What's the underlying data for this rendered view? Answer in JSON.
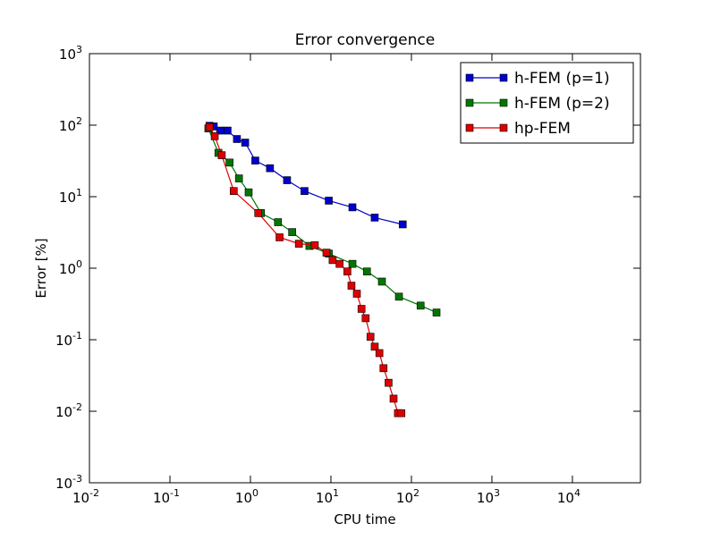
{
  "chart_data": {
    "type": "line",
    "title": "Error convergence",
    "xlabel": "CPU time",
    "ylabel": "Error [%]",
    "xscale": "log",
    "yscale": "log",
    "xlim": [
      0.01,
      70000
    ],
    "ylim": [
      0.001,
      1000
    ],
    "xticks": [
      {
        "value": 0.01,
        "base": "10",
        "exp": "-2"
      },
      {
        "value": 0.1,
        "base": "10",
        "exp": "-1"
      },
      {
        "value": 1,
        "base": "10",
        "exp": "0"
      },
      {
        "value": 10,
        "base": "10",
        "exp": "1"
      },
      {
        "value": 100,
        "base": "10",
        "exp": "2"
      },
      {
        "value": 1000,
        "base": "10",
        "exp": "3"
      },
      {
        "value": 10000,
        "base": "10",
        "exp": "4"
      }
    ],
    "yticks": [
      {
        "value": 0.001,
        "base": "10",
        "exp": "-3"
      },
      {
        "value": 0.01,
        "base": "10",
        "exp": "-2"
      },
      {
        "value": 0.1,
        "base": "10",
        "exp": "-1"
      },
      {
        "value": 1,
        "base": "10",
        "exp": "0"
      },
      {
        "value": 10,
        "base": "10",
        "exp": "1"
      },
      {
        "value": 100,
        "base": "10",
        "exp": "2"
      },
      {
        "value": 1000,
        "base": "10",
        "exp": "3"
      }
    ],
    "grid": false,
    "legend_position": "top-right",
    "series": [
      {
        "name": "h-FEM (p=1)",
        "color": "#0000cc",
        "x": [
          0.31,
          0.35,
          0.42,
          0.52,
          0.68,
          0.86,
          1.15,
          1.75,
          2.85,
          4.7,
          9.4,
          18.5,
          35.0,
          78.0
        ],
        "y": [
          98,
          96,
          84,
          84,
          64,
          57,
          32,
          25,
          17,
          12,
          8.8,
          7.1,
          5.1,
          4.1
        ]
      },
      {
        "name": "h-FEM (p=2)",
        "color": "#007700",
        "x": [
          0.3,
          0.4,
          0.55,
          0.72,
          0.95,
          1.35,
          2.2,
          3.3,
          5.4,
          9.4,
          18.5,
          28.0,
          43.0,
          70.0,
          130.0,
          205.0
        ],
        "y": [
          90,
          41,
          30,
          18,
          11.5,
          5.9,
          4.4,
          3.2,
          2.05,
          1.6,
          1.15,
          0.9,
          0.65,
          0.4,
          0.3,
          0.24
        ]
      },
      {
        "name": "hp-FEM",
        "color": "#dd0000",
        "x": [
          0.31,
          0.36,
          0.44,
          0.62,
          1.25,
          2.3,
          4.0,
          6.3,
          8.8,
          10.5,
          12.8,
          16.0,
          18.0,
          21.0,
          24.0,
          27.0,
          31.0,
          35.0,
          40.0,
          45.0,
          52.0,
          60.0,
          68.0,
          75.0
        ],
        "y": [
          94,
          70,
          38,
          12,
          5.9,
          2.7,
          2.2,
          2.1,
          1.65,
          1.3,
          1.15,
          0.9,
          0.57,
          0.44,
          0.27,
          0.2,
          0.11,
          0.08,
          0.065,
          0.04,
          0.025,
          0.015,
          0.0094,
          0.0094
        ]
      }
    ]
  }
}
